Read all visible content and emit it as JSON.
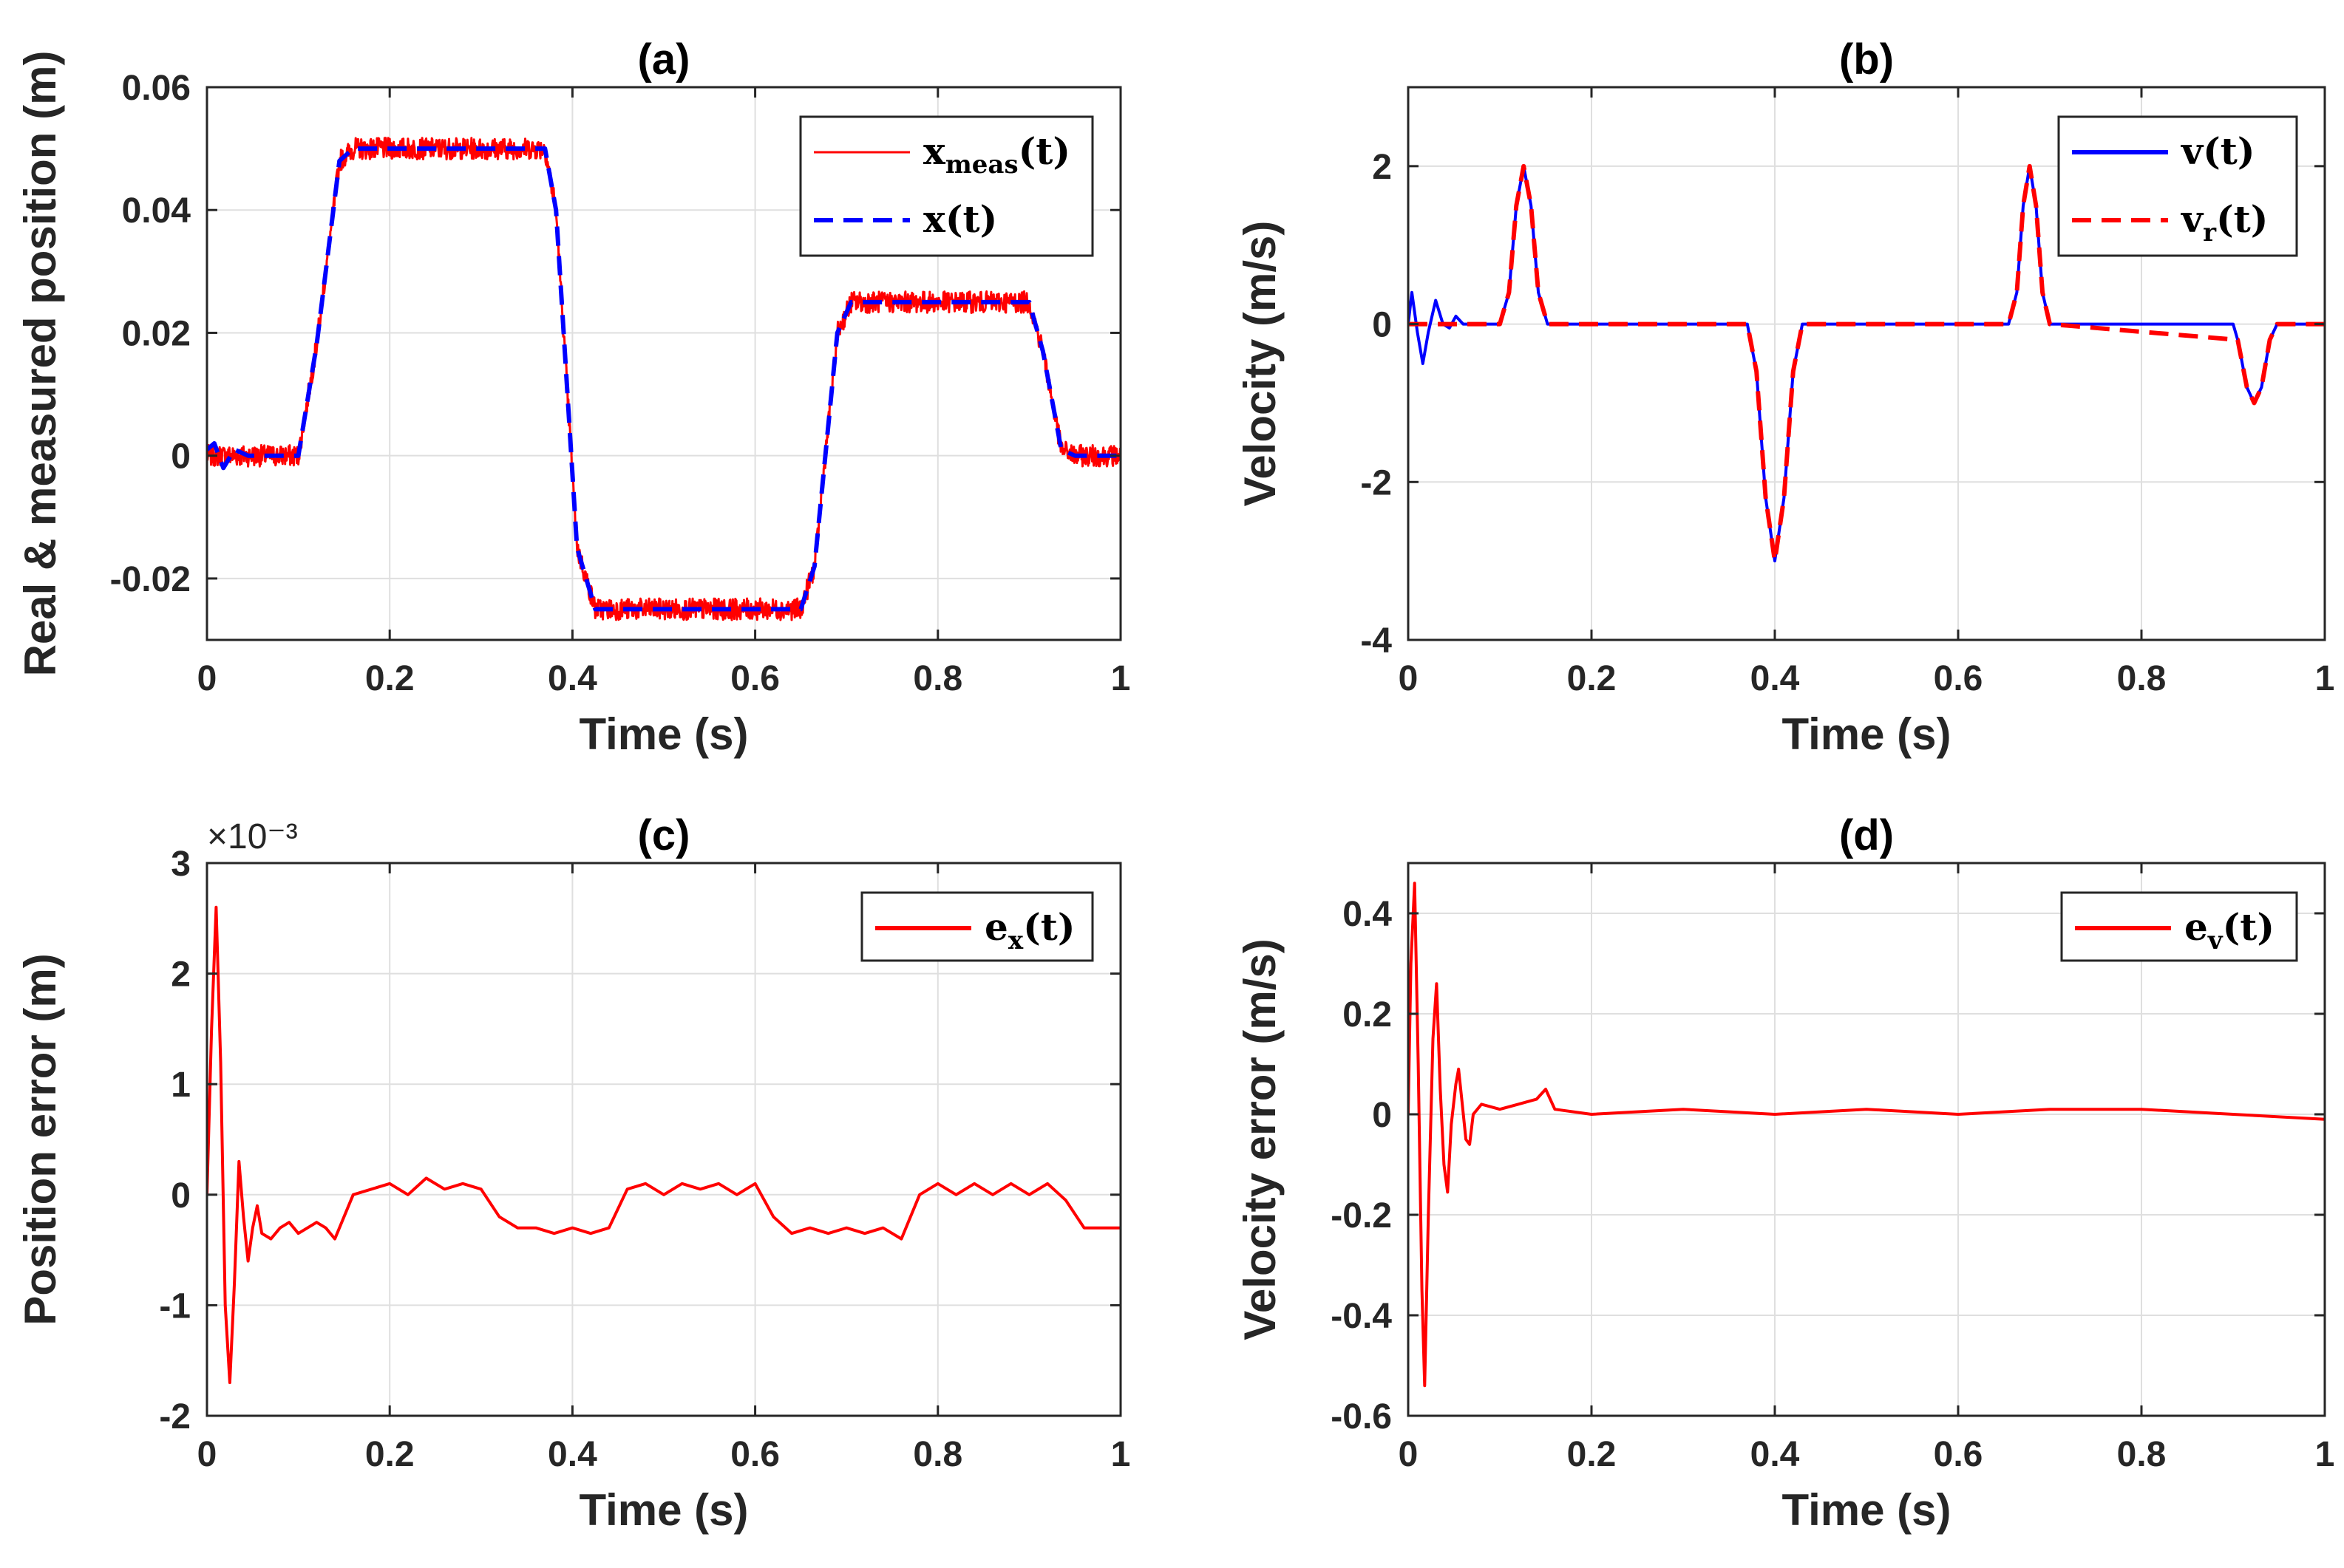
{
  "colors": {
    "red": "#ff0000",
    "blue": "#0000ff",
    "axis": "#262626",
    "grid": "#dfdfdf"
  },
  "chart_data": [
    {
      "id": "a",
      "type": "line",
      "title": "(a)",
      "xlabel": "Time (s)",
      "ylabel": "Real & measured position (m)",
      "xlim": [
        0,
        1
      ],
      "ylim": [
        -0.03,
        0.06
      ],
      "xticks": [
        0,
        0.2,
        0.4,
        0.6,
        0.8,
        1
      ],
      "xtick_labels": [
        "0",
        "0.2",
        "0.4",
        "0.6",
        "0.8",
        "1"
      ],
      "yticks": [
        -0.02,
        0,
        0.02,
        0.04,
        0.06
      ],
      "ytick_labels": [
        "-0.02",
        "0",
        "0.02",
        "0.04",
        "0.06"
      ],
      "grid": true,
      "legend_position": "top-right",
      "series": [
        {
          "name": "x_meas(t)",
          "legend_main": "x",
          "legend_sub": "meas",
          "legend_suffix": "(t)",
          "color": "#ff0000",
          "style": "solid",
          "noise": 0.0035,
          "points": [
            [
              0,
              0
            ],
            [
              0.1,
              0
            ],
            [
              0.12,
              0.018
            ],
            [
              0.145,
              0.048
            ],
            [
              0.16,
              0.05
            ],
            [
              0.37,
              0.05
            ],
            [
              0.382,
              0.04
            ],
            [
              0.405,
              -0.015
            ],
            [
              0.425,
              -0.025
            ],
            [
              0.65,
              -0.025
            ],
            [
              0.665,
              -0.018
            ],
            [
              0.69,
              0.02
            ],
            [
              0.705,
              0.025
            ],
            [
              0.9,
              0.025
            ],
            [
              0.915,
              0.017
            ],
            [
              0.935,
              0.001
            ],
            [
              0.95,
              0
            ],
            [
              1,
              0
            ]
          ]
        },
        {
          "name": "x(t)",
          "legend_main": "x",
          "legend_sub": "",
          "legend_suffix": "(t)",
          "color": "#0000ff",
          "style": "dashed",
          "points": [
            [
              0,
              0.001
            ],
            [
              0.008,
              0.002
            ],
            [
              0.018,
              -0.002
            ],
            [
              0.03,
              0.001
            ],
            [
              0.045,
              0
            ],
            [
              0.1,
              0
            ],
            [
              0.12,
              0.018
            ],
            [
              0.145,
              0.048
            ],
            [
              0.16,
              0.05
            ],
            [
              0.37,
              0.05
            ],
            [
              0.382,
              0.04
            ],
            [
              0.405,
              -0.015
            ],
            [
              0.425,
              -0.025
            ],
            [
              0.65,
              -0.025
            ],
            [
              0.665,
              -0.018
            ],
            [
              0.69,
              0.02
            ],
            [
              0.705,
              0.025
            ],
            [
              0.9,
              0.025
            ],
            [
              0.915,
              0.017
            ],
            [
              0.935,
              0.001
            ],
            [
              0.95,
              0
            ],
            [
              1,
              0
            ]
          ]
        }
      ]
    },
    {
      "id": "b",
      "type": "line",
      "title": "(b)",
      "xlabel": "Time (s)",
      "ylabel": "Velocity (m/s)",
      "xlim": [
        0,
        1
      ],
      "ylim": [
        -4,
        3
      ],
      "xticks": [
        0,
        0.2,
        0.4,
        0.6,
        0.8,
        1
      ],
      "xtick_labels": [
        "0",
        "0.2",
        "0.4",
        "0.6",
        "0.8",
        "1"
      ],
      "yticks": [
        -4,
        -2,
        0,
        2
      ],
      "ytick_labels": [
        "-4",
        "-2",
        "0",
        "2"
      ],
      "grid": true,
      "legend_position": "top-right",
      "series": [
        {
          "name": "v(t)",
          "legend_main": "v",
          "legend_sub": "",
          "legend_suffix": "(t)",
          "color": "#0000ff",
          "style": "solid",
          "points": [
            [
              0,
              0
            ],
            [
              0.004,
              0.4
            ],
            [
              0.01,
              -0.1
            ],
            [
              0.016,
              -0.5
            ],
            [
              0.022,
              -0.1
            ],
            [
              0.03,
              0.3
            ],
            [
              0.038,
              0
            ],
            [
              0.045,
              -0.05
            ],
            [
              0.052,
              0.1
            ],
            [
              0.06,
              0
            ],
            [
              0.1,
              0
            ],
            [
              0.11,
              0.4
            ],
            [
              0.118,
              1.5
            ],
            [
              0.126,
              2.0
            ],
            [
              0.134,
              1.5
            ],
            [
              0.142,
              0.4
            ],
            [
              0.152,
              0
            ],
            [
              0.2,
              0
            ],
            [
              0.25,
              0
            ],
            [
              0.3,
              0
            ],
            [
              0.37,
              0
            ],
            [
              0.38,
              -0.6
            ],
            [
              0.39,
              -2.2
            ],
            [
              0.4,
              -3.0
            ],
            [
              0.41,
              -2.2
            ],
            [
              0.42,
              -0.6
            ],
            [
              0.43,
              0
            ],
            [
              0.5,
              0
            ],
            [
              0.6,
              0
            ],
            [
              0.655,
              0
            ],
            [
              0.664,
              0.4
            ],
            [
              0.671,
              1.5
            ],
            [
              0.678,
              2.0
            ],
            [
              0.685,
              1.5
            ],
            [
              0.692,
              0.4
            ],
            [
              0.7,
              0
            ],
            [
              0.8,
              0
            ],
            [
              0.9,
              0
            ],
            [
              0.905,
              -0.2
            ],
            [
              0.915,
              -0.8
            ],
            [
              0.923,
              -1.0
            ],
            [
              0.931,
              -0.8
            ],
            [
              0.94,
              -0.2
            ],
            [
              0.948,
              0
            ],
            [
              1,
              0
            ]
          ]
        },
        {
          "name": "v_r(t)",
          "legend_main": "v",
          "legend_sub": "r",
          "legend_suffix": "(t)",
          "color": "#ff0000",
          "style": "dashed",
          "points": [
            [
              0,
              0
            ],
            [
              0.1,
              0
            ],
            [
              0.11,
              0.4
            ],
            [
              0.118,
              1.5
            ],
            [
              0.126,
              2.0
            ],
            [
              0.134,
              1.5
            ],
            [
              0.142,
              0.4
            ],
            [
              0.152,
              0
            ],
            [
              0.37,
              0
            ],
            [
              0.38,
              -0.6
            ],
            [
              0.39,
              -2.2
            ],
            [
              0.4,
              -3.0
            ],
            [
              0.41,
              -2.2
            ],
            [
              0.42,
              -0.6
            ],
            [
              0.43,
              0
            ],
            [
              0.655,
              0
            ],
            [
              0.664,
              0.4
            ],
            [
              0.671,
              1.5
            ],
            [
              0.678,
              2.0
            ],
            [
              0.685,
              1.5
            ],
            [
              0.692,
              0.4
            ],
            [
              0.7,
              0
            ],
            [
              0.905,
              -0.2
            ],
            [
              0.915,
              -0.8
            ],
            [
              0.923,
              -1.0
            ],
            [
              0.931,
              -0.8
            ],
            [
              0.94,
              -0.2
            ],
            [
              0.948,
              0
            ],
            [
              1,
              0
            ]
          ]
        }
      ]
    },
    {
      "id": "c",
      "type": "line",
      "title": "(c)",
      "xlabel": "Time (s)",
      "ylabel": "Position error (m)",
      "exponent_label": "×10⁻³",
      "xlim": [
        0,
        1
      ],
      "ylim": [
        -2,
        3
      ],
      "xticks": [
        0,
        0.2,
        0.4,
        0.6,
        0.8,
        1
      ],
      "xtick_labels": [
        "0",
        "0.2",
        "0.4",
        "0.6",
        "0.8",
        "1"
      ],
      "yticks": [
        -2,
        -1,
        0,
        1,
        2,
        3
      ],
      "ytick_labels": [
        "-2",
        "-1",
        "0",
        "1",
        "2",
        "3"
      ],
      "grid": true,
      "legend_position": "top-right",
      "series": [
        {
          "name": "e_x(t)",
          "legend_main": "e",
          "legend_sub": "x",
          "legend_suffix": "(t)",
          "color": "#ff0000",
          "style": "solid",
          "points": [
            [
              0,
              0
            ],
            [
              0.005,
              1.5
            ],
            [
              0.01,
              2.6
            ],
            [
              0.015,
              1.2
            ],
            [
              0.02,
              -1.0
            ],
            [
              0.025,
              -1.7
            ],
            [
              0.03,
              -0.8
            ],
            [
              0.035,
              0.3
            ],
            [
              0.04,
              -0.2
            ],
            [
              0.045,
              -0.6
            ],
            [
              0.05,
              -0.3
            ],
            [
              0.055,
              -0.1
            ],
            [
              0.06,
              -0.35
            ],
            [
              0.07,
              -0.4
            ],
            [
              0.08,
              -0.3
            ],
            [
              0.09,
              -0.25
            ],
            [
              0.1,
              -0.35
            ],
            [
              0.11,
              -0.3
            ],
            [
              0.12,
              -0.25
            ],
            [
              0.13,
              -0.3
            ],
            [
              0.14,
              -0.4
            ],
            [
              0.15,
              -0.2
            ],
            [
              0.16,
              0
            ],
            [
              0.18,
              0.05
            ],
            [
              0.2,
              0.1
            ],
            [
              0.22,
              0
            ],
            [
              0.24,
              0.15
            ],
            [
              0.26,
              0.05
            ],
            [
              0.28,
              0.1
            ],
            [
              0.3,
              0.05
            ],
            [
              0.32,
              -0.2
            ],
            [
              0.34,
              -0.3
            ],
            [
              0.36,
              -0.3
            ],
            [
              0.38,
              -0.35
            ],
            [
              0.4,
              -0.3
            ],
            [
              0.42,
              -0.35
            ],
            [
              0.44,
              -0.3
            ],
            [
              0.46,
              0.05
            ],
            [
              0.48,
              0.1
            ],
            [
              0.5,
              0
            ],
            [
              0.52,
              0.1
            ],
            [
              0.54,
              0.05
            ],
            [
              0.56,
              0.1
            ],
            [
              0.58,
              0
            ],
            [
              0.6,
              0.1
            ],
            [
              0.62,
              -0.2
            ],
            [
              0.64,
              -0.35
            ],
            [
              0.66,
              -0.3
            ],
            [
              0.68,
              -0.35
            ],
            [
              0.7,
              -0.3
            ],
            [
              0.72,
              -0.35
            ],
            [
              0.74,
              -0.3
            ],
            [
              0.76,
              -0.4
            ],
            [
              0.78,
              0
            ],
            [
              0.8,
              0.1
            ],
            [
              0.82,
              0
            ],
            [
              0.84,
              0.1
            ],
            [
              0.86,
              0
            ],
            [
              0.88,
              0.1
            ],
            [
              0.9,
              0
            ],
            [
              0.92,
              0.1
            ],
            [
              0.94,
              -0.05
            ],
            [
              0.96,
              -0.3
            ],
            [
              0.98,
              -0.3
            ],
            [
              1,
              -0.3
            ]
          ]
        }
      ]
    },
    {
      "id": "d",
      "type": "line",
      "title": "(d)",
      "xlabel": "Time (s)",
      "ylabel": "Velocity error (m/s)",
      "xlim": [
        0,
        1
      ],
      "ylim": [
        -0.6,
        0.5
      ],
      "xticks": [
        0,
        0.2,
        0.4,
        0.6,
        0.8,
        1
      ],
      "xtick_labels": [
        "0",
        "0.2",
        "0.4",
        "0.6",
        "0.8",
        "1"
      ],
      "yticks": [
        -0.6,
        -0.4,
        -0.2,
        0,
        0.2,
        0.4
      ],
      "ytick_labels": [
        "-0.6",
        "-0.4",
        "-0.2",
        "0",
        "0.2",
        "0.4"
      ],
      "grid": true,
      "legend_position": "top-right",
      "series": [
        {
          "name": "e_v(t)",
          "legend_main": "e",
          "legend_sub": "v",
          "legend_suffix": "(t)",
          "color": "#ff0000",
          "style": "solid",
          "points": [
            [
              0,
              0
            ],
            [
              0.003,
              0.3
            ],
            [
              0.007,
              0.46
            ],
            [
              0.011,
              0.1
            ],
            [
              0.015,
              -0.35
            ],
            [
              0.018,
              -0.54
            ],
            [
              0.022,
              -0.2
            ],
            [
              0.027,
              0.15
            ],
            [
              0.031,
              0.26
            ],
            [
              0.035,
              0.05
            ],
            [
              0.039,
              -0.1
            ],
            [
              0.043,
              -0.155
            ],
            [
              0.047,
              -0.02
            ],
            [
              0.052,
              0.06
            ],
            [
              0.055,
              0.09
            ],
            [
              0.059,
              0.02
            ],
            [
              0.063,
              -0.05
            ],
            [
              0.067,
              -0.06
            ],
            [
              0.071,
              0
            ],
            [
              0.08,
              0.02
            ],
            [
              0.1,
              0.01
            ],
            [
              0.12,
              0.02
            ],
            [
              0.14,
              0.03
            ],
            [
              0.15,
              0.05
            ],
            [
              0.16,
              0.01
            ],
            [
              0.2,
              0
            ],
            [
              0.3,
              0.01
            ],
            [
              0.4,
              0
            ],
            [
              0.5,
              0.01
            ],
            [
              0.6,
              0
            ],
            [
              0.7,
              0.01
            ],
            [
              0.8,
              0.01
            ],
            [
              0.9,
              0
            ],
            [
              1,
              -0.01
            ]
          ]
        }
      ]
    }
  ]
}
